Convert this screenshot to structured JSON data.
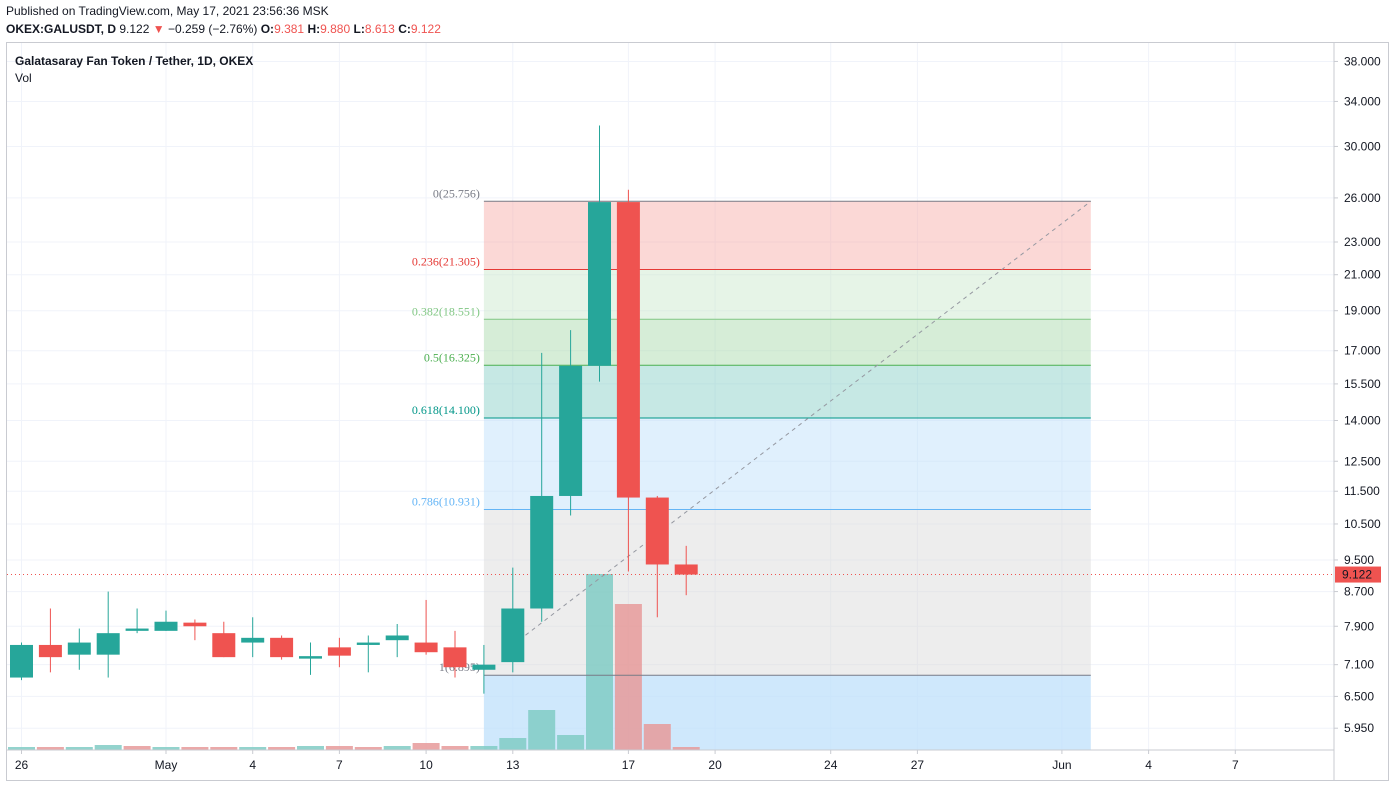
{
  "header": {
    "published": "Published on TradingView.com, May 17, 2021 23:56:36 MSK",
    "symbol": "OKEX:GALUSDT, D",
    "last": "9.122",
    "arrow": "▼",
    "change": "−0.259 (−2.76%)",
    "o_label": "O:",
    "o_value": "9.381",
    "h_label": "H:",
    "h_value": "9.880",
    "l_label": "L:",
    "l_value": "8.613",
    "c_label": "C:",
    "c_value": "9.122"
  },
  "legend": {
    "title": "Galatasaray Fan Token / Tether, 1D, OKEX",
    "vol": "Vol"
  },
  "colors": {
    "up": "#26a69a",
    "down": "#ef5350",
    "up_vol": "#80cbc4",
    "down_vol": "#e69a9a"
  },
  "chart_data": {
    "type": "candlestick",
    "title": "Galatasaray Fan Token / Tether, 1D, OKEX",
    "y_scale": "log",
    "ylim": [
      5.6,
      40
    ],
    "y_ticks": [
      "38.000",
      "34.000",
      "30.000",
      "26.000",
      "23.000",
      "21.000",
      "19.000",
      "17.000",
      "15.500",
      "14.000",
      "12.500",
      "11.500",
      "10.500",
      "9.500",
      "8.700",
      "7.900",
      "7.100",
      "6.500",
      "5.950"
    ],
    "x_ticks": [
      {
        "label": "26",
        "day": 0
      },
      {
        "label": "May",
        "day": 5
      },
      {
        "label": "4",
        "day": 8
      },
      {
        "label": "7",
        "day": 11
      },
      {
        "label": "10",
        "day": 14
      },
      {
        "label": "13",
        "day": 17
      },
      {
        "label": "17",
        "day": 21
      },
      {
        "label": "20",
        "day": 24
      },
      {
        "label": "24",
        "day": 28
      },
      {
        "label": "27",
        "day": 31
      },
      {
        "label": "Jun",
        "day": 36
      },
      {
        "label": "4",
        "day": 39
      },
      {
        "label": "7",
        "day": 42
      }
    ],
    "candles": [
      {
        "date": "Apr 25",
        "o": 6.85,
        "h": 7.55,
        "l": 6.8,
        "c": 7.5
      },
      {
        "date": "Apr 26",
        "o": 7.5,
        "h": 8.3,
        "l": 6.95,
        "c": 7.25
      },
      {
        "date": "Apr 27",
        "o": 7.3,
        "h": 7.85,
        "l": 7.0,
        "c": 7.55
      },
      {
        "date": "Apr 28",
        "o": 7.3,
        "h": 8.7,
        "l": 6.85,
        "c": 7.75
      },
      {
        "date": "Apr 29",
        "o": 7.8,
        "h": 8.3,
        "l": 7.75,
        "c": 7.85
      },
      {
        "date": "Apr 30",
        "o": 7.8,
        "h": 8.25,
        "l": 7.8,
        "c": 8.0
      },
      {
        "date": "May 1",
        "o": 7.98,
        "h": 8.05,
        "l": 7.6,
        "c": 7.9
      },
      {
        "date": "May 2",
        "o": 7.75,
        "h": 8.0,
        "l": 7.25,
        "c": 7.25
      },
      {
        "date": "May 3",
        "o": 7.55,
        "h": 8.1,
        "l": 7.25,
        "c": 7.65
      },
      {
        "date": "May 4",
        "o": 7.65,
        "h": 7.7,
        "l": 7.2,
        "c": 7.25
      },
      {
        "date": "May 5",
        "o": 7.22,
        "h": 7.55,
        "l": 6.9,
        "c": 7.27
      },
      {
        "date": "May 6",
        "o": 7.45,
        "h": 7.65,
        "l": 7.05,
        "c": 7.28
      },
      {
        "date": "May 7",
        "o": 7.5,
        "h": 7.7,
        "l": 6.95,
        "c": 7.55
      },
      {
        "date": "May 8",
        "o": 7.6,
        "h": 7.95,
        "l": 7.25,
        "c": 7.7
      },
      {
        "date": "May 9",
        "o": 7.55,
        "h": 8.5,
        "l": 7.3,
        "c": 7.35
      },
      {
        "date": "May 10",
        "o": 7.45,
        "h": 7.8,
        "l": 6.85,
        "c": 7.05
      },
      {
        "date": "May 11",
        "o": 7.0,
        "h": 7.5,
        "l": 6.55,
        "c": 7.1
      },
      {
        "date": "May 12",
        "o": 7.15,
        "h": 9.3,
        "l": 6.95,
        "c": 8.3
      },
      {
        "date": "May 13",
        "o": 8.3,
        "h": 16.9,
        "l": 8.0,
        "c": 11.35
      },
      {
        "date": "May 14",
        "o": 11.35,
        "h": 18.0,
        "l": 10.75,
        "c": 16.3
      },
      {
        "date": "May 15",
        "o": 16.3,
        "h": 31.8,
        "l": 15.6,
        "c": 25.7
      },
      {
        "date": "May 16",
        "o": 25.7,
        "h": 26.6,
        "l": 9.2,
        "c": 11.3
      },
      {
        "date": "May 17",
        "o": 11.3,
        "h": 11.35,
        "l": 8.1,
        "c": 9.381
      },
      {
        "date": "May 18",
        "o": 9.381,
        "h": 9.88,
        "l": 8.613,
        "c": 9.122
      }
    ],
    "volume": [
      {
        "date": "Apr 25",
        "v": 3,
        "dir": "up"
      },
      {
        "date": "Apr 26",
        "v": 3,
        "dir": "down"
      },
      {
        "date": "Apr 27",
        "v": 3,
        "dir": "up"
      },
      {
        "date": "Apr 28",
        "v": 5,
        "dir": "up"
      },
      {
        "date": "Apr 29",
        "v": 4,
        "dir": "down"
      },
      {
        "date": "Apr 30",
        "v": 3,
        "dir": "up"
      },
      {
        "date": "May 1",
        "v": 3,
        "dir": "down"
      },
      {
        "date": "May 2",
        "v": 3,
        "dir": "down"
      },
      {
        "date": "May 3",
        "v": 3,
        "dir": "up"
      },
      {
        "date": "May 4",
        "v": 3,
        "dir": "down"
      },
      {
        "date": "May 5",
        "v": 4,
        "dir": "up"
      },
      {
        "date": "May 6",
        "v": 4,
        "dir": "down"
      },
      {
        "date": "May 7",
        "v": 3,
        "dir": "down"
      },
      {
        "date": "May 8",
        "v": 4,
        "dir": "up"
      },
      {
        "date": "May 9",
        "v": 7,
        "dir": "down"
      },
      {
        "date": "May 10",
        "v": 4,
        "dir": "down"
      },
      {
        "date": "May 11",
        "v": 4,
        "dir": "up"
      },
      {
        "date": "May 12",
        "v": 12,
        "dir": "up"
      },
      {
        "date": "May 13",
        "v": 40,
        "dir": "up"
      },
      {
        "date": "May 14",
        "v": 15,
        "dir": "up"
      },
      {
        "date": "May 15",
        "v": 176,
        "dir": "up"
      },
      {
        "date": "May 16",
        "v": 146,
        "dir": "down"
      },
      {
        "date": "May 17",
        "v": 26,
        "dir": "down"
      },
      {
        "date": "May 18",
        "v": 3,
        "dir": "down"
      }
    ],
    "fib": {
      "start_day": 16,
      "end_day": 37,
      "levels": [
        {
          "label": "0(25.756)",
          "ratio": 0,
          "price": 25.756,
          "line": "#787b86",
          "fill": "#f7a9a5",
          "text": "#787b86"
        },
        {
          "label": "0.236(21.305)",
          "ratio": 0.236,
          "price": 21.305,
          "line": "#e53935",
          "fill": "#c8e6c9",
          "text": "#e53935"
        },
        {
          "label": "0.382(18.551)",
          "ratio": 0.382,
          "price": 18.551,
          "line": "#81c784",
          "fill": "#a5d6a7",
          "text": "#81c784"
        },
        {
          "label": "0.5(16.325)",
          "ratio": 0.5,
          "price": 16.325,
          "line": "#4caf50",
          "fill": "#80cbc4",
          "text": "#4caf50"
        },
        {
          "label": "0.618(14.100)",
          "ratio": 0.618,
          "price": 14.1,
          "line": "#009688",
          "fill": "#bbdefb",
          "text": "#009688"
        },
        {
          "label": "0.786(10.931)",
          "ratio": 0.786,
          "price": 10.931,
          "line": "#64b5f6",
          "fill": "#d6d6d6",
          "text": "#64b5f6"
        },
        {
          "label": "1(6.895)",
          "ratio": 1,
          "price": 6.895,
          "line": "#787b86",
          "fill": "#bbdefb",
          "text": "#787b86"
        }
      ],
      "trend_from": {
        "day": 17,
        "price": 7.5
      },
      "trend_to": {
        "day": 37,
        "price": 25.756
      }
    },
    "last_price": "9.122"
  }
}
